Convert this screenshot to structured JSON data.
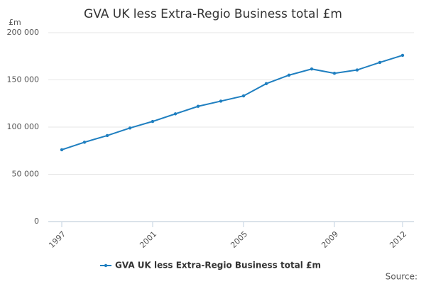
{
  "chart_data": {
    "type": "line",
    "title": "GVA UK less Extra-Regio Business total £m",
    "y_label": "£m",
    "source": "Source:",
    "x": [
      1997,
      1998,
      1999,
      2000,
      2001,
      2002,
      2003,
      2004,
      2005,
      2006,
      2007,
      2008,
      2009,
      2010,
      2011,
      2012
    ],
    "series": [
      {
        "name": "GVA UK less Extra-Regio Business total £m",
        "color": "#1f7fc0",
        "values": [
          76000,
          84000,
          91000,
          99000,
          106000,
          114000,
          122000,
          127500,
          133000,
          146000,
          155000,
          161500,
          157000,
          160500,
          168500,
          176000
        ]
      }
    ],
    "xlim": [
      1997,
      2012
    ],
    "xticks": [
      1997,
      2001,
      2005,
      2009,
      2012
    ],
    "ylim": [
      0,
      200000
    ],
    "yticks": [
      0,
      {
        "value": 50000,
        "label": "50 000"
      },
      {
        "value": 100000,
        "label": "100 000"
      },
      {
        "value": 150000,
        "label": "150 000"
      },
      {
        "value": 200000,
        "label": "200 000"
      }
    ],
    "grid": true,
    "legend": "bottom"
  }
}
